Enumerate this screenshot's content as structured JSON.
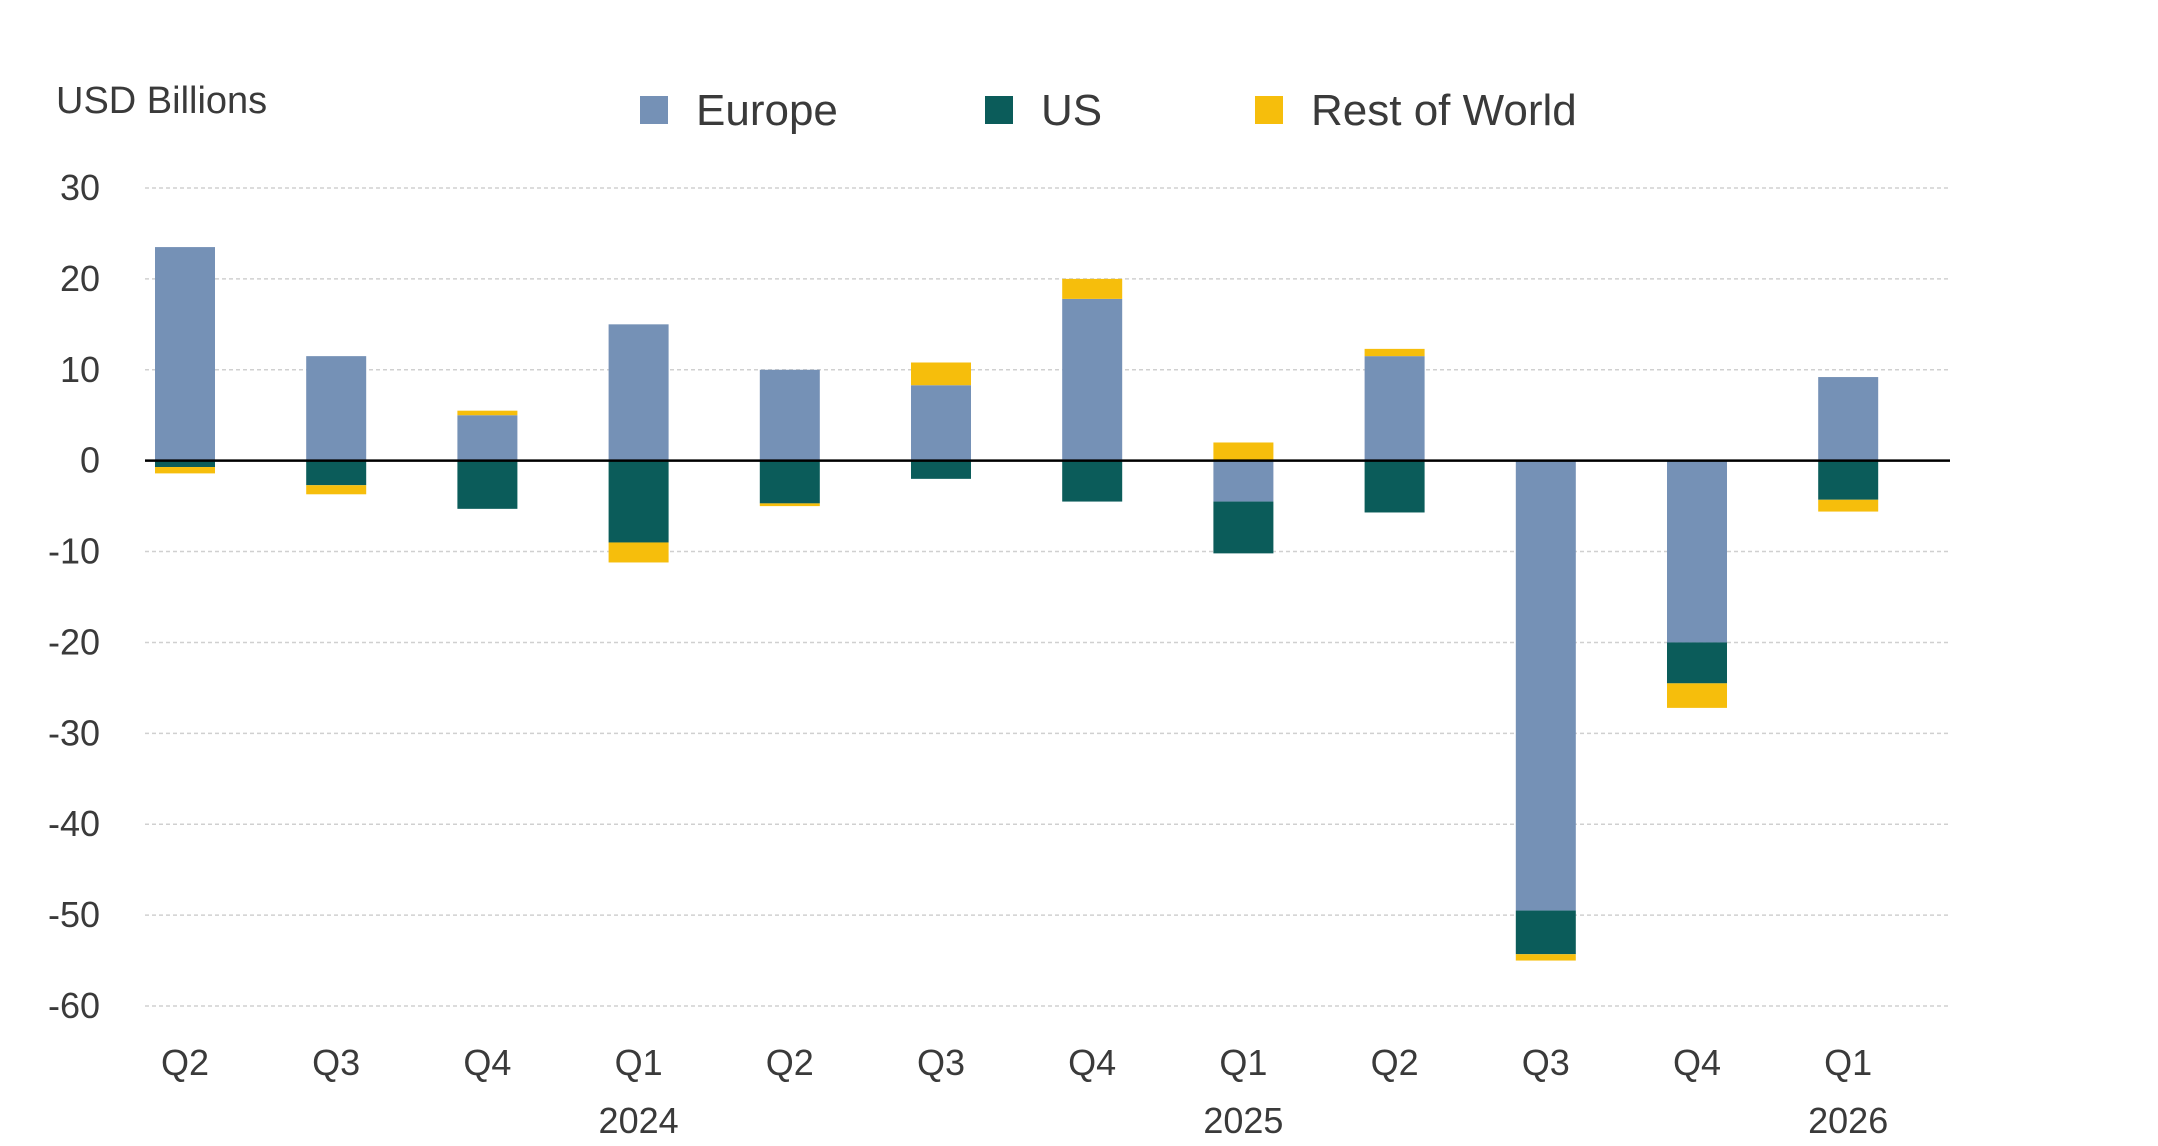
{
  "chart_data": {
    "type": "bar",
    "stacked": true,
    "ylabel": "USD Billions",
    "ylim": [
      -60,
      30
    ],
    "yticks": [
      30,
      20,
      10,
      0,
      -10,
      -20,
      -30,
      -40,
      -50,
      -60
    ],
    "grid": true,
    "legend_position": "top",
    "categories": [
      "Q2",
      "Q3",
      "Q4",
      "Q1",
      "Q2",
      "Q3",
      "Q4",
      "Q1",
      "Q2",
      "Q3",
      "Q4",
      "Q1"
    ],
    "year_labels": [
      {
        "category_index": 3,
        "text": "2024"
      },
      {
        "category_index": 7,
        "text": "2025"
      },
      {
        "category_index": 11,
        "text": "2026"
      }
    ],
    "series": [
      {
        "name": "Europe",
        "color": "#7591b6",
        "values": [
          23.5,
          11.5,
          5.0,
          15.0,
          10.0,
          8.3,
          17.8,
          -4.5,
          11.5,
          -49.5,
          -20.0,
          9.2
        ]
      },
      {
        "name": "US",
        "color": "#0b5c5a",
        "values": [
          -0.7,
          -2.7,
          -5.3,
          -9.0,
          -4.7,
          -2.0,
          -4.5,
          -5.7,
          -5.7,
          -4.8,
          -4.5,
          -4.3
        ]
      },
      {
        "name": "Rest of World",
        "color": "#f6be0c",
        "values": [
          -0.7,
          -1.0,
          0.5,
          -2.2,
          -0.3,
          2.5,
          2.2,
          2.0,
          0.8,
          -0.7,
          -2.7,
          -1.3
        ]
      }
    ]
  }
}
